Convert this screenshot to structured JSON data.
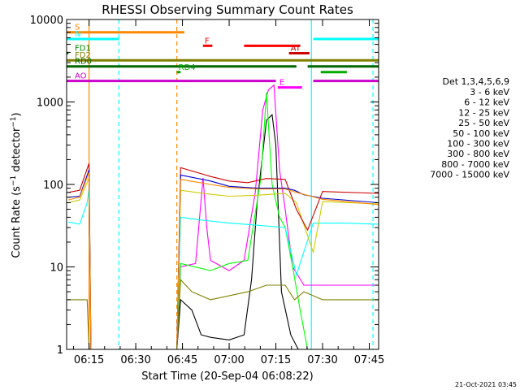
{
  "chart_data": {
    "type": "line",
    "title": "RHESSI Observing Summary Count Rates",
    "xlabel": "Start Time (20-Sep-04 06:08:22)",
    "ylabel": "Count Rate (s⁻¹ detector⁻¹)",
    "ylabel_main": "Count Rate (s",
    "ylabel_mid": " detector",
    "ylabel_end": ")",
    "ylabel_sup": "−1",
    "footer_date": "21-Oct-2021 03:45",
    "yscale": "log",
    "xlim": [
      6.13,
      7.8
    ],
    "ylim": [
      1,
      10000
    ],
    "x_ticks": [
      {
        "value": 6.25,
        "label": "06:15"
      },
      {
        "value": 6.5,
        "label": "06:30"
      },
      {
        "value": 6.75,
        "label": "06:45"
      },
      {
        "value": 7.0,
        "label": "07:00"
      },
      {
        "value": 7.25,
        "label": "07:15"
      },
      {
        "value": 7.5,
        "label": "07:30"
      },
      {
        "value": 7.75,
        "label": "07:45"
      }
    ],
    "y_ticks": [
      {
        "value": 1,
        "label": "1"
      },
      {
        "value": 10,
        "label": "10"
      },
      {
        "value": 100,
        "label": "100"
      },
      {
        "value": 1000,
        "label": "1000"
      },
      {
        "value": 10000,
        "label": "10000"
      }
    ],
    "legend_title": "Det 1,3,4,5,6,9",
    "legend_placement": "right",
    "series": [
      {
        "name": "3 - 6 keV",
        "color": "#000000",
        "points": [
          [
            6.14,
            1
          ],
          [
            6.72,
            1
          ],
          [
            6.74,
            4
          ],
          [
            6.8,
            3
          ],
          [
            6.85,
            1.5
          ],
          [
            6.9,
            1.4
          ],
          [
            7.0,
            1.3
          ],
          [
            7.08,
            1.5
          ],
          [
            7.12,
            7
          ],
          [
            7.15,
            60
          ],
          [
            7.2,
            600
          ],
          [
            7.23,
            700
          ],
          [
            7.25,
            300
          ],
          [
            7.28,
            5
          ],
          [
            7.33,
            1.5
          ],
          [
            7.37,
            1
          ],
          [
            7.8,
            1
          ]
        ]
      },
      {
        "name": "6 - 12 keV",
        "color": "#ff00ff",
        "points": [
          [
            6.14,
            1
          ],
          [
            6.72,
            1
          ],
          [
            6.74,
            10
          ],
          [
            6.82,
            11
          ],
          [
            6.86,
            120
          ],
          [
            6.88,
            30
          ],
          [
            6.9,
            12
          ],
          [
            7.0,
            9
          ],
          [
            7.08,
            12
          ],
          [
            7.14,
            80
          ],
          [
            7.18,
            800
          ],
          [
            7.21,
            1400
          ],
          [
            7.24,
            1600
          ],
          [
            7.27,
            150
          ],
          [
            7.3,
            50
          ],
          [
            7.34,
            10
          ],
          [
            7.4,
            6
          ],
          [
            7.8,
            6
          ]
        ]
      },
      {
        "name": "12 - 25 keV",
        "color": "#00ff00",
        "points": [
          [
            6.14,
            1
          ],
          [
            6.72,
            1
          ],
          [
            6.74,
            11
          ],
          [
            6.9,
            9
          ],
          [
            7.0,
            11
          ],
          [
            7.1,
            12
          ],
          [
            7.17,
            120
          ],
          [
            7.2,
            1300
          ],
          [
            7.23,
            100
          ],
          [
            7.27,
            40
          ],
          [
            7.3,
            30
          ],
          [
            7.34,
            10
          ],
          [
            7.38,
            3
          ],
          [
            7.42,
            1
          ],
          [
            7.8,
            1
          ]
        ]
      },
      {
        "name": "25 - 50 keV",
        "color": "#00ffff",
        "points": [
          [
            6.14,
            35
          ],
          [
            6.2,
            33
          ],
          [
            6.24,
            60
          ],
          [
            6.25,
            90
          ],
          [
            6.26,
            1
          ],
          [
            6.72,
            1
          ],
          [
            6.74,
            40
          ],
          [
            6.85,
            37
          ],
          [
            7.0,
            34
          ],
          [
            7.15,
            32
          ],
          [
            7.3,
            30
          ],
          [
            7.36,
            8
          ],
          [
            7.45,
            34
          ],
          [
            7.6,
            34
          ],
          [
            7.8,
            33
          ]
        ]
      },
      {
        "name": "50 - 100 keV",
        "color": "#cccc00",
        "points": [
          [
            6.14,
            60
          ],
          [
            6.2,
            65
          ],
          [
            6.25,
            120
          ],
          [
            6.26,
            1
          ],
          [
            6.72,
            1
          ],
          [
            6.74,
            85
          ],
          [
            6.9,
            76
          ],
          [
            7.0,
            72
          ],
          [
            7.15,
            74
          ],
          [
            7.3,
            78
          ],
          [
            7.36,
            60
          ],
          [
            7.45,
            15
          ],
          [
            7.5,
            62
          ],
          [
            7.8,
            58
          ]
        ]
      },
      {
        "name": "100 - 300 keV",
        "color": "#cc0000",
        "points": [
          [
            6.14,
            80
          ],
          [
            6.2,
            85
          ],
          [
            6.25,
            180
          ],
          [
            6.26,
            1
          ],
          [
            6.72,
            1
          ],
          [
            6.74,
            160
          ],
          [
            6.9,
            125
          ],
          [
            7.0,
            110
          ],
          [
            7.1,
            105
          ],
          [
            7.2,
            118
          ],
          [
            7.3,
            115
          ],
          [
            7.36,
            50
          ],
          [
            7.42,
            28
          ],
          [
            7.5,
            82
          ],
          [
            7.8,
            78
          ]
        ]
      },
      {
        "name": "300 - 800 keV",
        "color": "#0000cc",
        "points": [
          [
            6.14,
            70
          ],
          [
            6.2,
            72
          ],
          [
            6.25,
            150
          ],
          [
            6.26,
            1
          ],
          [
            6.72,
            1
          ],
          [
            6.74,
            130
          ],
          [
            6.9,
            110
          ],
          [
            7.0,
            95
          ],
          [
            7.15,
            90
          ],
          [
            7.3,
            90
          ],
          [
            7.35,
            85
          ],
          [
            7.4,
            75
          ],
          [
            7.5,
            68
          ],
          [
            7.8,
            60
          ]
        ]
      },
      {
        "name": "800 - 7000 keV",
        "color": "#ff8800",
        "points": [
          [
            6.14,
            65
          ],
          [
            6.2,
            70
          ],
          [
            6.25,
            140
          ],
          [
            6.26,
            1
          ],
          [
            6.72,
            1
          ],
          [
            6.74,
            115
          ],
          [
            6.9,
            100
          ],
          [
            7.0,
            92
          ],
          [
            7.15,
            88
          ],
          [
            7.3,
            88
          ],
          [
            7.36,
            80
          ],
          [
            7.5,
            66
          ],
          [
            7.8,
            57
          ]
        ]
      },
      {
        "name": "7000 - 15000 keV",
        "color": "#808000",
        "points": [
          [
            6.14,
            4
          ],
          [
            6.24,
            4
          ],
          [
            6.25,
            1
          ],
          [
            6.72,
            1
          ],
          [
            6.74,
            7
          ],
          [
            6.8,
            5
          ],
          [
            6.9,
            4
          ],
          [
            7.1,
            5
          ],
          [
            7.2,
            6
          ],
          [
            7.3,
            6
          ],
          [
            7.35,
            4
          ],
          [
            7.4,
            5
          ],
          [
            7.5,
            4
          ],
          [
            7.8,
            4
          ]
        ]
      }
    ],
    "flags": [
      {
        "label": "S",
        "color": "#ff8800",
        "y": 7000,
        "segments": [
          [
            6.13,
            6.76
          ]
        ]
      },
      {
        "label": "N",
        "color": "#00ffff",
        "y": 5800,
        "segments": [
          [
            6.13,
            6.41
          ],
          [
            7.45,
            7.8
          ]
        ]
      },
      {
        "label": "F",
        "color": "#ff0000",
        "y": 4800,
        "segments": [
          [
            6.86,
            6.91
          ],
          [
            7.08,
            7.38
          ]
        ]
      },
      {
        "label": "FD1",
        "color": "#008800",
        "y": 3900,
        "segments": [
          [
            6.13,
            6.14
          ]
        ]
      },
      {
        "label": "AT",
        "color": "#cc0000",
        "y": 3900,
        "segments": [
          [
            7.32,
            7.43
          ]
        ]
      },
      {
        "label": "FD2",
        "color": "#808000",
        "y": 3200,
        "segments": [
          [
            6.13,
            7.8
          ]
        ]
      },
      {
        "label": "RD0",
        "color": "#006600",
        "y": 2700,
        "segments": [
          [
            6.13,
            7.36
          ],
          [
            7.42,
            7.8
          ]
        ]
      },
      {
        "label": "RD4",
        "color": "#00aa00",
        "y": 2300,
        "segments": [
          [
            6.72,
            6.74
          ],
          [
            7.49,
            7.63
          ]
        ]
      },
      {
        "label": "AO",
        "color": "#cc00cc",
        "y": 1800,
        "segments": [
          [
            6.13,
            7.25
          ],
          [
            7.45,
            7.8
          ]
        ]
      },
      {
        "label": "E",
        "color": "#ff00ff",
        "y": 1500,
        "segments": [
          [
            7.26,
            7.39
          ]
        ]
      }
    ],
    "vlines": [
      {
        "x": 6.25,
        "color": "#ff8800",
        "style": "solid"
      },
      {
        "x": 6.41,
        "color": "#00ffff",
        "style": "dashed"
      },
      {
        "x": 6.72,
        "color": "#ff8800",
        "style": "dashed"
      },
      {
        "x": 7.44,
        "color": "#00ffff",
        "style": "solid"
      },
      {
        "x": 7.77,
        "color": "#00ffff",
        "style": "dashed"
      }
    ]
  }
}
